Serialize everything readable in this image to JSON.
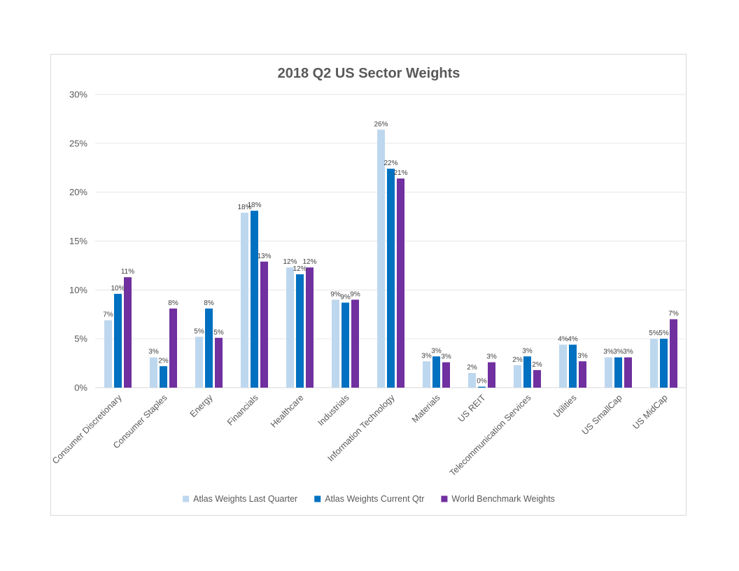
{
  "chart_data": {
    "type": "bar",
    "title": "2018 Q2 US Sector Weights",
    "xlabel": "",
    "ylabel": "",
    "ylim": [
      0,
      30
    ],
    "yticks": [
      "0%",
      "5%",
      "10%",
      "15%",
      "20%",
      "25%",
      "30%"
    ],
    "grid": true,
    "legend_position": "bottom",
    "categories": [
      "Consumer Discretionary",
      "Consumer Staples",
      "Energy",
      "Financials",
      "Healthcare",
      "Industrials",
      "Information Technology",
      "Materials",
      "US REIT",
      "Telecommunication Services",
      "Utilities",
      "US SmallCap",
      "US MidCap"
    ],
    "series": [
      {
        "name": "Atlas Weights Last Quarter",
        "color": "#bdd7ee",
        "values": [
          6.9,
          3.1,
          5.2,
          17.9,
          12.3,
          9.0,
          26.4,
          2.7,
          1.5,
          2.3,
          4.4,
          3.1,
          5.0
        ],
        "labels": [
          "7%",
          "3%",
          "5%",
          "18%",
          "12%",
          "9%",
          "26%",
          "3%",
          "2%",
          "2%",
          "4%",
          "3%",
          "5%"
        ]
      },
      {
        "name": "Atlas Weights Current Qtr",
        "color": "#0070c0",
        "values": [
          9.6,
          2.2,
          8.1,
          18.1,
          11.6,
          8.7,
          22.4,
          3.2,
          0.1,
          3.2,
          4.4,
          3.1,
          5.0
        ],
        "labels": [
          "10%",
          "2%",
          "8%",
          "18%",
          "12%",
          "9%",
          "22%",
          "3%",
          "0%",
          "3%",
          "4%",
          "3%",
          "5%"
        ]
      },
      {
        "name": "World Benchmark Weights",
        "color": "#7030a0",
        "values": [
          11.3,
          8.1,
          5.1,
          12.9,
          12.3,
          9.0,
          21.4,
          2.6,
          2.6,
          1.8,
          2.7,
          3.1,
          7.0
        ],
        "labels": [
          "11%",
          "8%",
          "5%",
          "13%",
          "12%",
          "9%",
          "21%",
          "3%",
          "3%",
          "2%",
          "3%",
          "3%",
          "7%"
        ]
      }
    ]
  }
}
